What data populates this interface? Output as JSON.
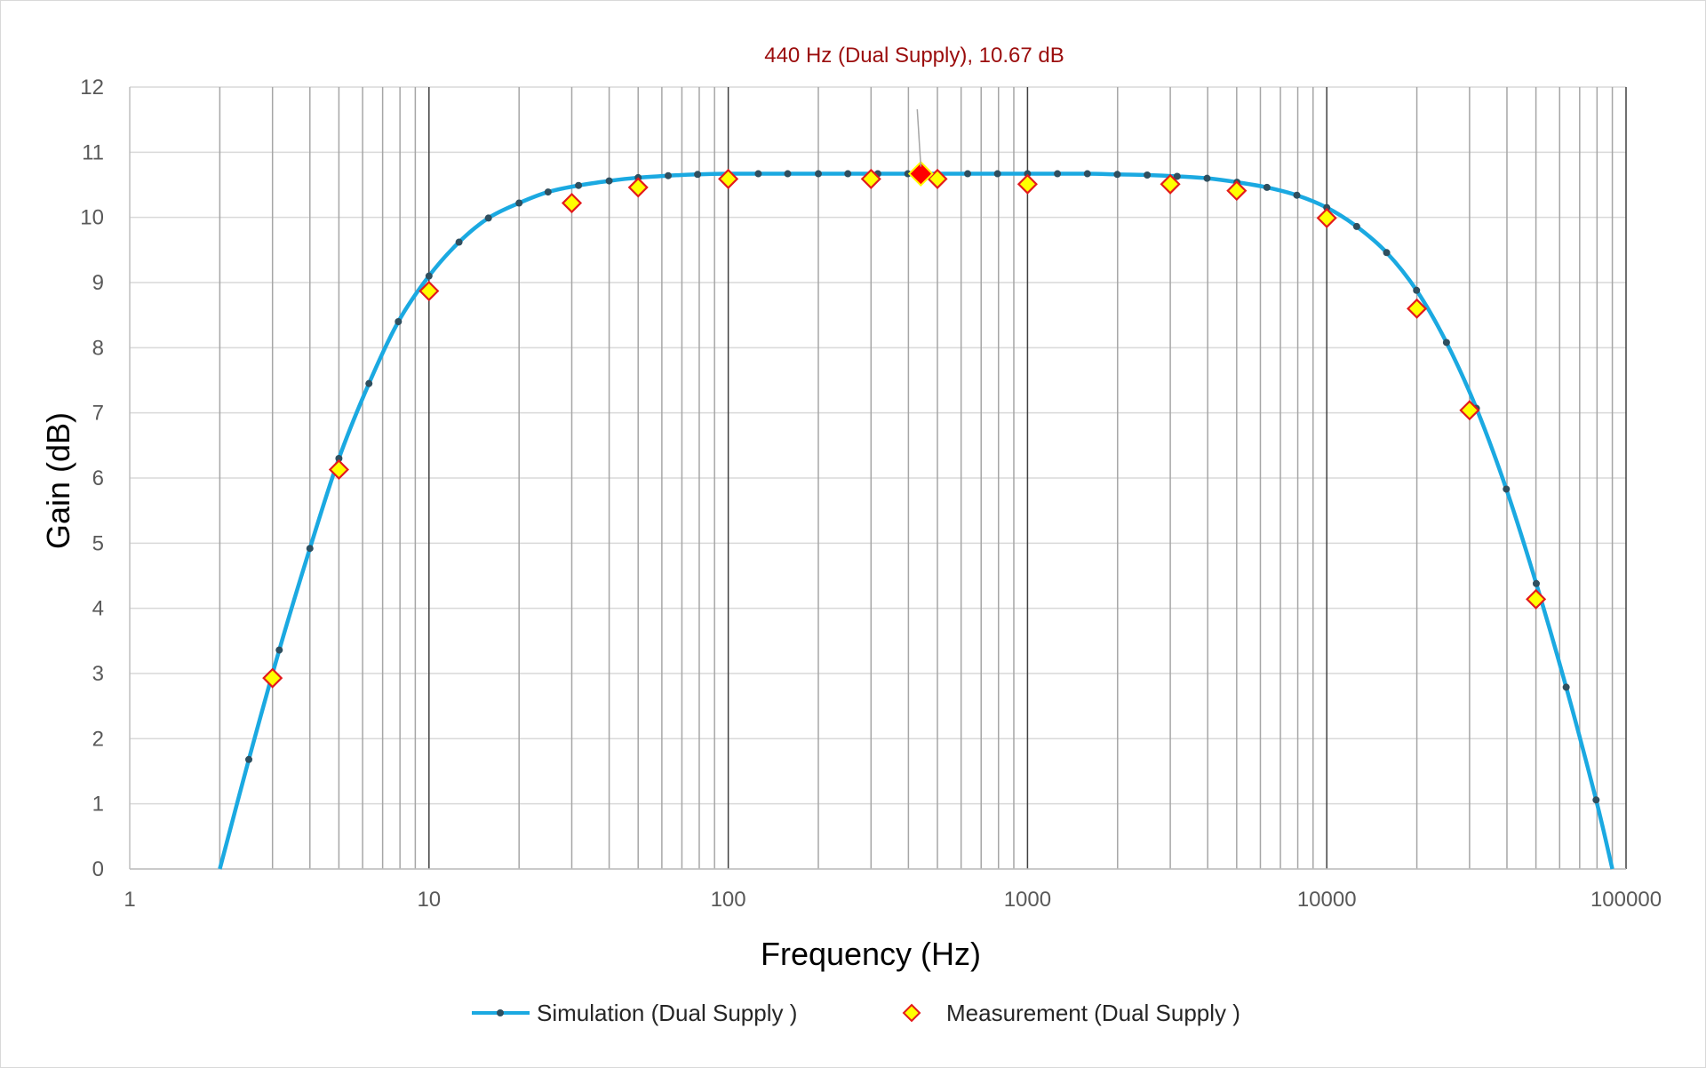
{
  "chart_data": {
    "type": "scatter",
    "title": "",
    "xlabel": "Frequency (Hz)",
    "ylabel": "Gain (dB)",
    "x_scale": "log",
    "xlim": [
      1,
      100000
    ],
    "ylim": [
      0,
      12
    ],
    "x_ticks": [
      "1",
      "10",
      "100",
      "1000",
      "10000",
      "100000"
    ],
    "y_ticks": [
      "0",
      "1",
      "2",
      "3",
      "4",
      "5",
      "6",
      "7",
      "8",
      "9",
      "10",
      "11",
      "12"
    ],
    "grid": true,
    "legend_position": "bottom",
    "annotation": {
      "text": "440 Hz (Dual Supply), 10.67 dB",
      "x": 440,
      "y": 10.67,
      "color": "#9b0d0d"
    },
    "series": [
      {
        "name": "Simulation (Dual Supply )",
        "style": "line-with-dots",
        "line_color": "#1ba9e1",
        "marker_color": "#2f4f5f",
        "x": [
          2,
          2.5,
          3.16,
          4,
          5,
          6.3,
          7.9,
          10,
          12.6,
          15.8,
          20,
          25,
          31.6,
          40,
          50,
          63,
          79,
          100,
          126,
          158,
          200,
          251,
          316,
          398,
          501,
          631,
          794,
          1000,
          1259,
          1585,
          1995,
          2512,
          3162,
          3981,
          5012,
          6310,
          7943,
          10000,
          12589,
          15849,
          19953,
          25119,
          31623,
          39811,
          50119,
          63096,
          79433,
          90000
        ],
        "y": [
          0,
          1.68,
          3.36,
          4.92,
          6.3,
          7.45,
          8.4,
          9.1,
          9.62,
          9.99,
          10.22,
          10.39,
          10.49,
          10.56,
          10.61,
          10.64,
          10.66,
          10.67,
          10.67,
          10.67,
          10.67,
          10.67,
          10.67,
          10.67,
          10.67,
          10.67,
          10.67,
          10.67,
          10.67,
          10.67,
          10.66,
          10.65,
          10.63,
          10.6,
          10.54,
          10.46,
          10.34,
          10.15,
          9.86,
          9.46,
          8.88,
          8.08,
          7.07,
          5.83,
          4.38,
          2.79,
          1.06,
          0
        ]
      },
      {
        "name": "Measurement (Dual Supply )",
        "style": "diamond-markers",
        "fill_color": "#ffff00",
        "edge_color": "#e31a1c",
        "x": [
          3,
          5,
          10,
          30,
          50,
          100,
          300,
          500,
          1000,
          3000,
          5000,
          10000,
          20000,
          30000,
          50000
        ],
        "y": [
          2.93,
          6.13,
          8.87,
          10.22,
          10.46,
          10.59,
          10.59,
          10.59,
          10.51,
          10.51,
          10.41,
          9.99,
          8.6,
          7.04,
          4.14
        ]
      }
    ],
    "highlight_point": {
      "x": 440,
      "y": 10.67,
      "color": "#ff0000"
    }
  }
}
